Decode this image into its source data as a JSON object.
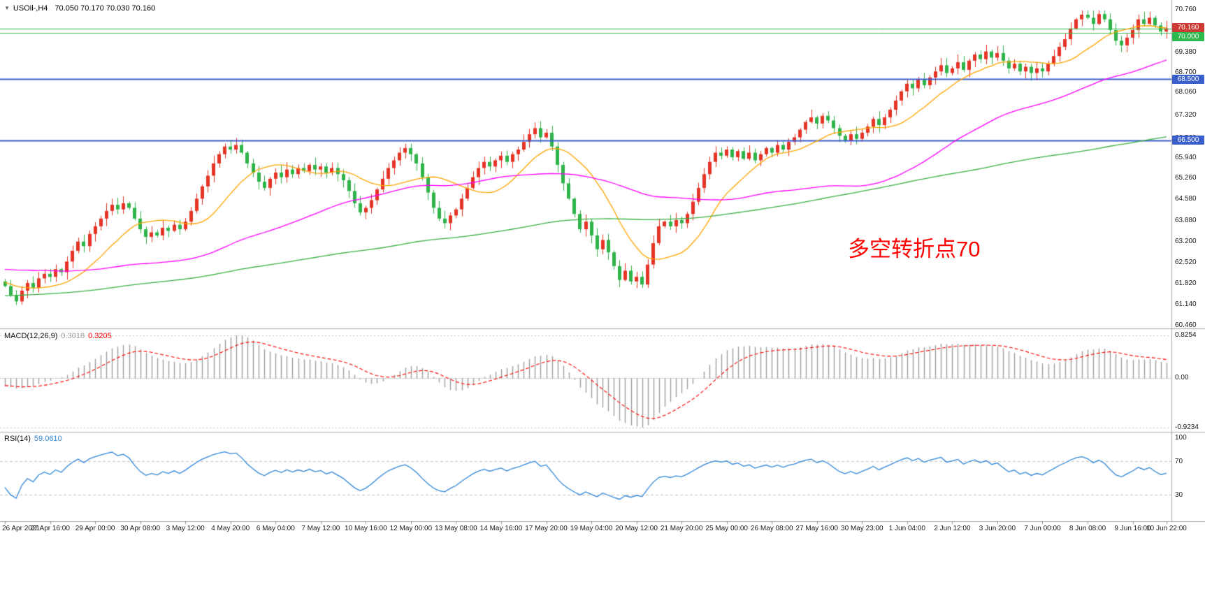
{
  "header": {
    "dropdown_icon": "▼",
    "symbol_timeframe": "USOil-,H4",
    "ohlc": "70.050 70.170 70.030 70.160"
  },
  "colors": {
    "background": "#ffffff",
    "up_candle": "#e53325",
    "down_candle": "#2eb449",
    "separator": "#a8a8a8",
    "axis_text": "#1b1b1b",
    "zero_line": "#d4d4d4",
    "level_line": "#c4c4c4",
    "tick": "#888888"
  },
  "chart_data": {
    "type": "candlestick",
    "symbol": "USOil-",
    "timeframe": "H4",
    "ohlc_current": {
      "open": 70.05,
      "high": 70.17,
      "low": 70.03,
      "close": 70.16
    },
    "ylim": [
      60.46,
      70.76
    ],
    "y_axis_labels": [
      "70.760",
      "69.380",
      "68.700",
      "68.060",
      "67.320",
      "66.560",
      "65.940",
      "65.260",
      "64.580",
      "63.880",
      "63.200",
      "62.520",
      "61.820",
      "61.140",
      "60.460"
    ],
    "x_labels": [
      "26 Apr 2021",
      "27 Apr 16:00",
      "29 Apr 00:00",
      "30 Apr 08:00",
      "3 May 12:00",
      "4 May 20:00",
      "6 May 04:00",
      "7 May 12:00",
      "10 May 16:00",
      "12 May 00:00",
      "13 May 08:00",
      "14 May 16:00",
      "17 May 20:00",
      "19 May 04:00",
      "20 May 12:00",
      "21 May 20:00",
      "25 May 00:00",
      "26 May 08:00",
      "27 May 16:00",
      "30 May 23:00",
      "1 Jun 04:00",
      "2 Jun 12:00",
      "3 Jun 20:00",
      "7 Jun 00:00",
      "8 Jun 08:00",
      "9 Jun 16:00",
      "10 Jun 22:00"
    ],
    "bars_per_label": 8,
    "closes": [
      61.75,
      61.45,
      61.25,
      61.6,
      61.85,
      61.7,
      62.0,
      62.15,
      62.05,
      62.3,
      62.2,
      62.55,
      62.9,
      63.2,
      63.05,
      63.45,
      63.7,
      63.95,
      64.2,
      64.4,
      64.25,
      64.45,
      64.3,
      63.95,
      63.6,
      63.35,
      63.5,
      63.4,
      63.65,
      63.55,
      63.75,
      63.6,
      63.85,
      64.2,
      64.6,
      65.0,
      65.35,
      65.75,
      66.05,
      66.3,
      66.2,
      66.35,
      66.1,
      65.75,
      65.45,
      65.15,
      64.95,
      65.25,
      65.45,
      65.3,
      65.55,
      65.4,
      65.6,
      65.5,
      65.7,
      65.55,
      65.65,
      65.45,
      65.6,
      65.4,
      65.2,
      64.85,
      64.45,
      64.15,
      64.3,
      64.55,
      64.9,
      65.25,
      65.6,
      65.85,
      66.1,
      66.25,
      66.05,
      65.75,
      65.3,
      64.8,
      64.3,
      63.95,
      63.8,
      64.05,
      64.25,
      64.6,
      64.95,
      65.3,
      65.6,
      65.8,
      65.65,
      65.85,
      66.0,
      65.8,
      66.05,
      66.2,
      66.45,
      66.7,
      66.9,
      66.6,
      66.75,
      66.3,
      65.7,
      65.1,
      64.6,
      64.1,
      63.6,
      63.85,
      63.4,
      62.95,
      63.25,
      62.85,
      62.4,
      61.95,
      62.25,
      61.9,
      62.05,
      61.8,
      62.45,
      63.15,
      63.7,
      63.85,
      63.7,
      63.9,
      63.8,
      64.1,
      64.5,
      64.95,
      65.4,
      65.8,
      66.1,
      66.0,
      66.2,
      65.95,
      66.15,
      65.9,
      66.1,
      65.85,
      66.05,
      66.25,
      66.1,
      66.35,
      66.2,
      66.45,
      66.6,
      66.85,
      67.1,
      67.25,
      67.05,
      67.3,
      67.15,
      66.9,
      66.65,
      66.5,
      66.7,
      66.55,
      66.75,
      66.95,
      67.2,
      67.0,
      67.25,
      67.5,
      67.8,
      68.1,
      68.35,
      68.2,
      68.5,
      68.3,
      68.55,
      68.75,
      68.95,
      68.7,
      68.85,
      69.05,
      68.8,
      69.1,
      69.3,
      69.15,
      69.4,
      69.2,
      69.35,
      69.1,
      68.85,
      69.0,
      68.75,
      68.9,
      68.7,
      68.85,
      68.75,
      69.0,
      69.25,
      69.55,
      69.8,
      70.15,
      70.45,
      70.6,
      70.5,
      70.3,
      70.62,
      70.45,
      70.1,
      69.75,
      69.6,
      69.85,
      70.1,
      70.45,
      70.3,
      70.5,
      70.25,
      70.05,
      70.16
    ],
    "moving_averages": [
      {
        "name": "fast-ma",
        "period": 13,
        "color": "#ffa500"
      },
      {
        "name": "mid-ma",
        "period": 55,
        "color": "#ff00ff"
      },
      {
        "name": "slow-ma",
        "period": 150,
        "color": "#3bb143"
      }
    ],
    "horizontal_lines": [
      {
        "price": 70.14,
        "color": "#2db84d",
        "width": 1
      },
      {
        "price": 70.0,
        "color": "#2db84d",
        "width": 1,
        "badge": "70.000"
      },
      {
        "price": 68.5,
        "color": "#3a5fcd",
        "width": 2,
        "badge": "68.500"
      },
      {
        "price": 66.5,
        "color": "#3a5fcd",
        "width": 2,
        "badge": "66.500"
      }
    ],
    "current_price_badge": {
      "value": "70.160",
      "price": 70.16,
      "bg": "#cc3b33"
    },
    "annotation": {
      "text": "多空转折点70",
      "color": "#ff0000"
    },
    "grid": false,
    "legend_position": "none",
    "indicators": [
      {
        "type": "MACD",
        "label": "MACD(12,26,9)",
        "values": [
          "0.3018",
          "0.3205"
        ],
        "fast": 12,
        "slow": 26,
        "signal": 9,
        "ylim": [
          -0.9234,
          0.8254
        ],
        "axis_labels": [
          "0.8254",
          "0.00",
          "-0.9234"
        ],
        "histogram_color": "#9e9e9e",
        "signal_color": "#ff0000"
      },
      {
        "type": "RSI",
        "label": "RSI(14)",
        "value": "59.0610",
        "period": 14,
        "levels": [
          70,
          30
        ],
        "ylim": [
          0,
          100
        ],
        "axis_labels": [
          "100",
          "70",
          "30"
        ],
        "line_color": "#2f86d8"
      }
    ]
  }
}
